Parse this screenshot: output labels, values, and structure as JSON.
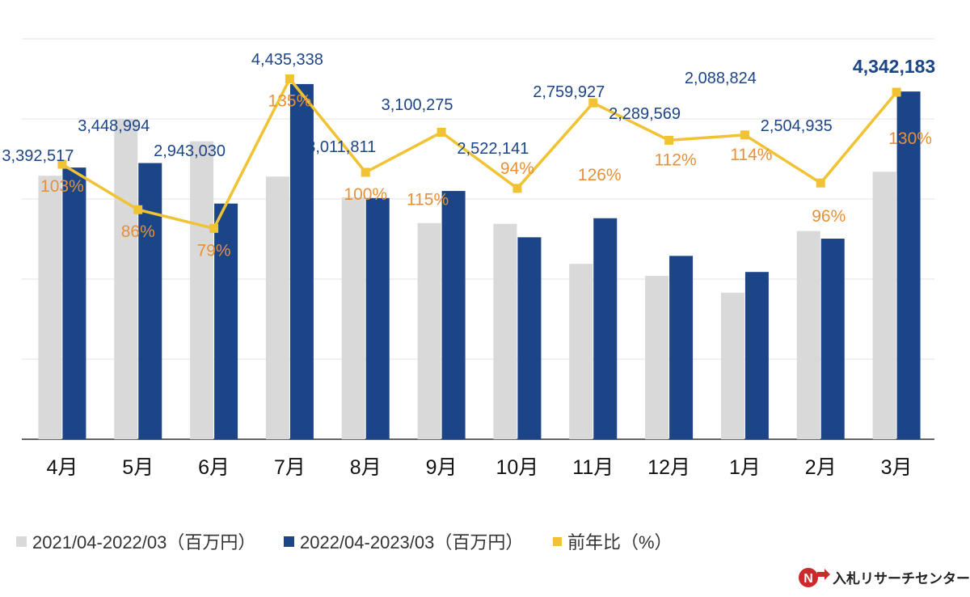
{
  "chart_data": {
    "type": "bar",
    "title": "",
    "xlabel": "",
    "ylabel": "",
    "grid": true,
    "categories": [
      "4月",
      "5月",
      "6月",
      "7月",
      "8月",
      "9月",
      "10月",
      "11月",
      "12月",
      "1月",
      "2月",
      "3月"
    ],
    "ylim": [
      0,
      5000000
    ],
    "ratio_ylim": [
      0,
      150
    ],
    "series": [
      {
        "name": "2021/04-2022/03（百万円）",
        "kind": "bar",
        "color": "#d9d9d9",
        "values": [
          3290000,
          4000000,
          3720000,
          3280000,
          3020000,
          2700000,
          2690000,
          2190000,
          2040000,
          1830000,
          2600000,
          3340000
        ]
      },
      {
        "name": "2022/04-2023/03（百万円）",
        "kind": "bar",
        "color": "#1c4587",
        "values": [
          3392517,
          3448994,
          2943030,
          4435338,
          3011811,
          3100275,
          2522141,
          2759927,
          2289569,
          2088824,
          2504935,
          4342183
        ],
        "labels": [
          "3,392,517",
          "3,448,994",
          "2,943,030",
          "4,435,338",
          "3,011,811",
          "3,100,275",
          "2,522,141",
          "2,759,927",
          "2,289,569",
          "2,088,824",
          "2,504,935",
          "4,342,183"
        ]
      },
      {
        "name": "前年比（%）",
        "kind": "line",
        "color": "#f1c232",
        "label_color": "#e69138",
        "values": [
          103,
          86,
          79,
          135,
          100,
          115,
          94,
          126,
          112,
          114,
          96,
          130
        ],
        "labels": [
          "103%",
          "86%",
          "79%",
          "135%",
          "100%",
          "115%",
          "94%",
          "126%",
          "112%",
          "114%",
          "96%",
          "130%"
        ]
      }
    ],
    "legend_position": "bottom-left",
    "highlight_last_label": true
  },
  "logo": {
    "text": "入札リサーチセンター",
    "mark": "N"
  }
}
